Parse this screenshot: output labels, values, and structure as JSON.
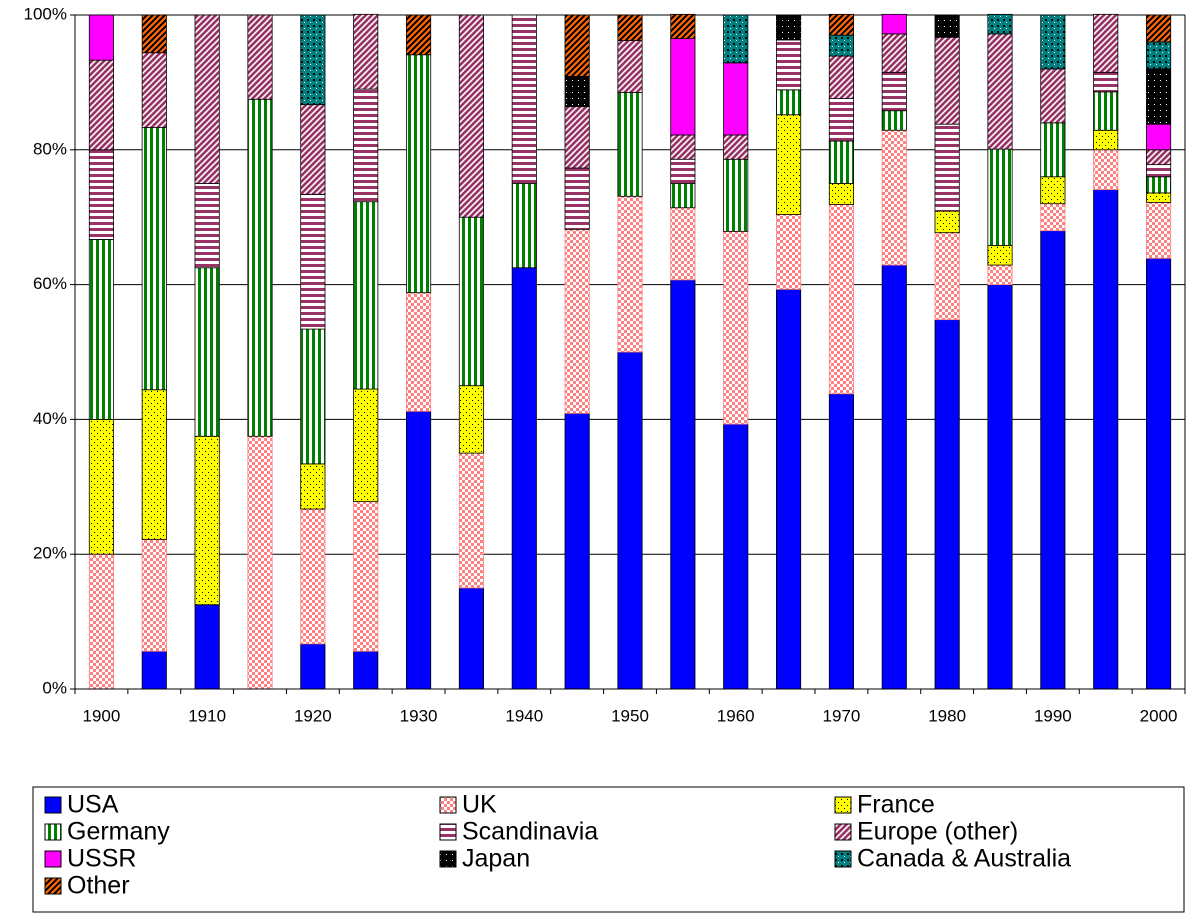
{
  "chart_data": {
    "type": "stacked_bar_percent",
    "categories": [
      "1900",
      null,
      "1910",
      null,
      "1920",
      null,
      "1930",
      null,
      "1940",
      null,
      "1950",
      null,
      "1960",
      null,
      "1970",
      null,
      "1980",
      null,
      "1990",
      null,
      "2000"
    ],
    "ylim": [
      0,
      100
    ],
    "yticks": [
      {
        "value": 0,
        "label": "0%"
      },
      {
        "value": 20,
        "label": "20%"
      },
      {
        "value": 40,
        "label": "40%"
      },
      {
        "value": 60,
        "label": "60%"
      },
      {
        "value": 80,
        "label": "80%"
      },
      {
        "value": 100,
        "label": "100%"
      }
    ],
    "grid": true,
    "legend": "bottom",
    "series": [
      {
        "name": "USA",
        "color": "#0000ff",
        "values": [
          0,
          5.6,
          12.5,
          0,
          6.7,
          5.6,
          41.2,
          15,
          62.5,
          40.9,
          50,
          60.7,
          39.3,
          59.3,
          43.8,
          62.9,
          54.8,
          60,
          68,
          74.1,
          63.9
        ]
      },
      {
        "name": "UK",
        "color": "#ff8080",
        "values": [
          20,
          16.6,
          0,
          37.5,
          20,
          22.2,
          17.6,
          20,
          0,
          27.3,
          23.1,
          10.7,
          28.6,
          11.1,
          28.1,
          20,
          12.9,
          2.9,
          4,
          5.9,
          8.3
        ]
      },
      {
        "name": "France",
        "color": "#ffff00",
        "values": [
          20,
          22.2,
          25,
          0,
          6.7,
          16.7,
          0,
          10,
          0,
          0,
          0,
          0,
          0,
          14.8,
          3.1,
          0,
          3.2,
          2.9,
          4,
          2.9,
          1.4
        ]
      },
      {
        "name": "Germany",
        "color": "#008000",
        "values": [
          26.7,
          38.9,
          25,
          50,
          20,
          27.8,
          35.3,
          25,
          12.5,
          0,
          15.4,
          3.6,
          10.7,
          3.7,
          6.3,
          2.9,
          0,
          14.3,
          8,
          5.7,
          2.4
        ]
      },
      {
        "name": "Scandinavia",
        "color": "#993366",
        "values": [
          13.3,
          0,
          12.5,
          0,
          20,
          16.7,
          0,
          0,
          25,
          9.1,
          0,
          3.6,
          0,
          7.4,
          6.3,
          5.7,
          12.9,
          0,
          0,
          2.9,
          1.8
        ]
      },
      {
        "name": "Europe (other)",
        "color": "#993366",
        "values": [
          13.3,
          11.1,
          25,
          12.5,
          13.3,
          11.1,
          0,
          30,
          0,
          9.1,
          7.7,
          3.6,
          3.6,
          0,
          6.3,
          5.7,
          12.9,
          17.1,
          8,
          8.6,
          2.2
        ]
      },
      {
        "name": "USSR",
        "color": "#ff00ff",
        "values": [
          6.7,
          0,
          0,
          0,
          0,
          0,
          0,
          0,
          0,
          0,
          0,
          14.3,
          10.7,
          0,
          0,
          2.9,
          0,
          0,
          0,
          0,
          3.8
        ]
      },
      {
        "name": "Japan",
        "color": "#000000",
        "values": [
          0,
          0,
          0,
          0,
          0,
          0,
          0,
          0,
          0,
          4.5,
          0,
          0,
          0,
          3.7,
          0,
          0,
          3.2,
          0,
          0,
          0,
          8.2
        ]
      },
      {
        "name": "Canada & Australia",
        "color": "#008080",
        "values": [
          0,
          0,
          0,
          0,
          13.3,
          0,
          0,
          0,
          0,
          0,
          0,
          0,
          7.1,
          0,
          3.1,
          0,
          0,
          2.9,
          8,
          0,
          4
        ]
      },
      {
        "name": "Other",
        "color": "#ff6600",
        "values": [
          0,
          5.6,
          0,
          0,
          0,
          0,
          5.9,
          0,
          0,
          9.1,
          3.8,
          3.6,
          0,
          0,
          3.1,
          0,
          0,
          0,
          0,
          0,
          4
        ]
      }
    ]
  }
}
